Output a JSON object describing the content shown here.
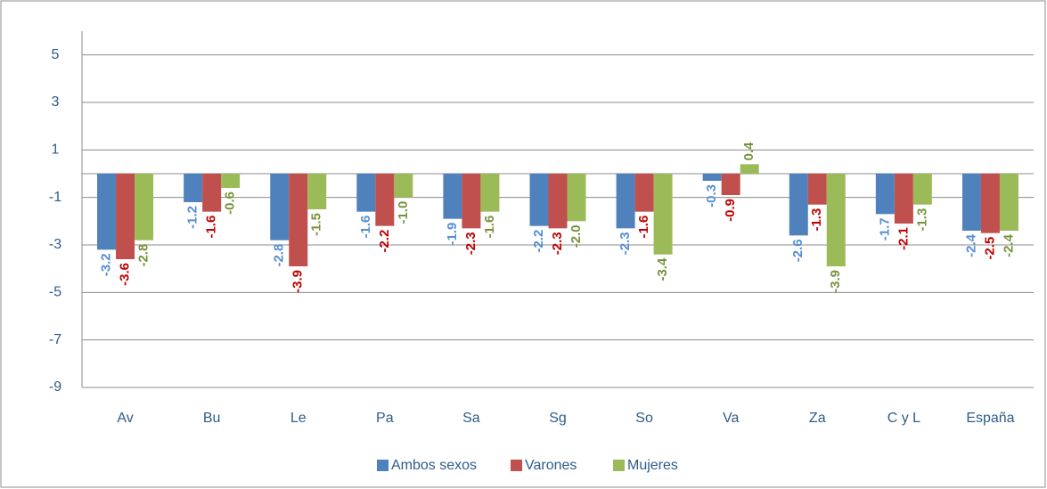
{
  "chart_data": {
    "type": "bar",
    "categories": [
      "Av",
      "Bu",
      "Le",
      "Pa",
      "Sa",
      "Sg",
      "So",
      "Va",
      "Za",
      "C y L",
      "España"
    ],
    "series": [
      {
        "name": "Ambos sexos",
        "color": "#4f81bd",
        "label_color": "#558ed5",
        "values": [
          -3.2,
          -1.2,
          -2.8,
          -1.6,
          -1.9,
          -2.2,
          -2.3,
          -0.3,
          -2.6,
          -1.7,
          -2.4
        ],
        "value_labels": [
          "-3.2",
          "-1.2",
          "-2.8",
          "-1.6",
          "-1.9",
          "-2.2",
          "-2.3",
          "-0.3",
          "-2.6",
          "-1.7",
          "-2.4"
        ]
      },
      {
        "name": "Varones",
        "color": "#c0504d",
        "label_color": "#c00000",
        "values": [
          -3.6,
          -1.6,
          -3.9,
          -2.2,
          -2.3,
          -2.3,
          -1.6,
          -0.9,
          -1.3,
          -2.1,
          -2.5
        ],
        "value_labels": [
          "-3.6",
          "-1.6",
          "-3.9",
          "-2.2",
          "-2.3",
          "-2.3",
          "-1.6",
          "-0.9",
          "-1.3",
          "-2.1",
          "-2.5"
        ]
      },
      {
        "name": "Mujeres",
        "color": "#9bbb59",
        "label_color": "#77933c",
        "values": [
          -2.8,
          -0.6,
          -1.5,
          -1.0,
          -1.6,
          -2.0,
          -3.4,
          0.4,
          -3.9,
          -1.3,
          -2.4
        ],
        "value_labels": [
          "-2.8",
          "-0.6",
          "-1.5",
          "-1.0",
          "-1.6",
          "-2.0",
          "-3.4",
          "0.4",
          "-3.9",
          "-1.3",
          "-2.4"
        ]
      }
    ],
    "ylim": [
      -9,
      6
    ],
    "yticks": [
      -9,
      -7,
      -5,
      -3,
      -1,
      1,
      3,
      5
    ],
    "grid": true,
    "legend": "bottom"
  }
}
